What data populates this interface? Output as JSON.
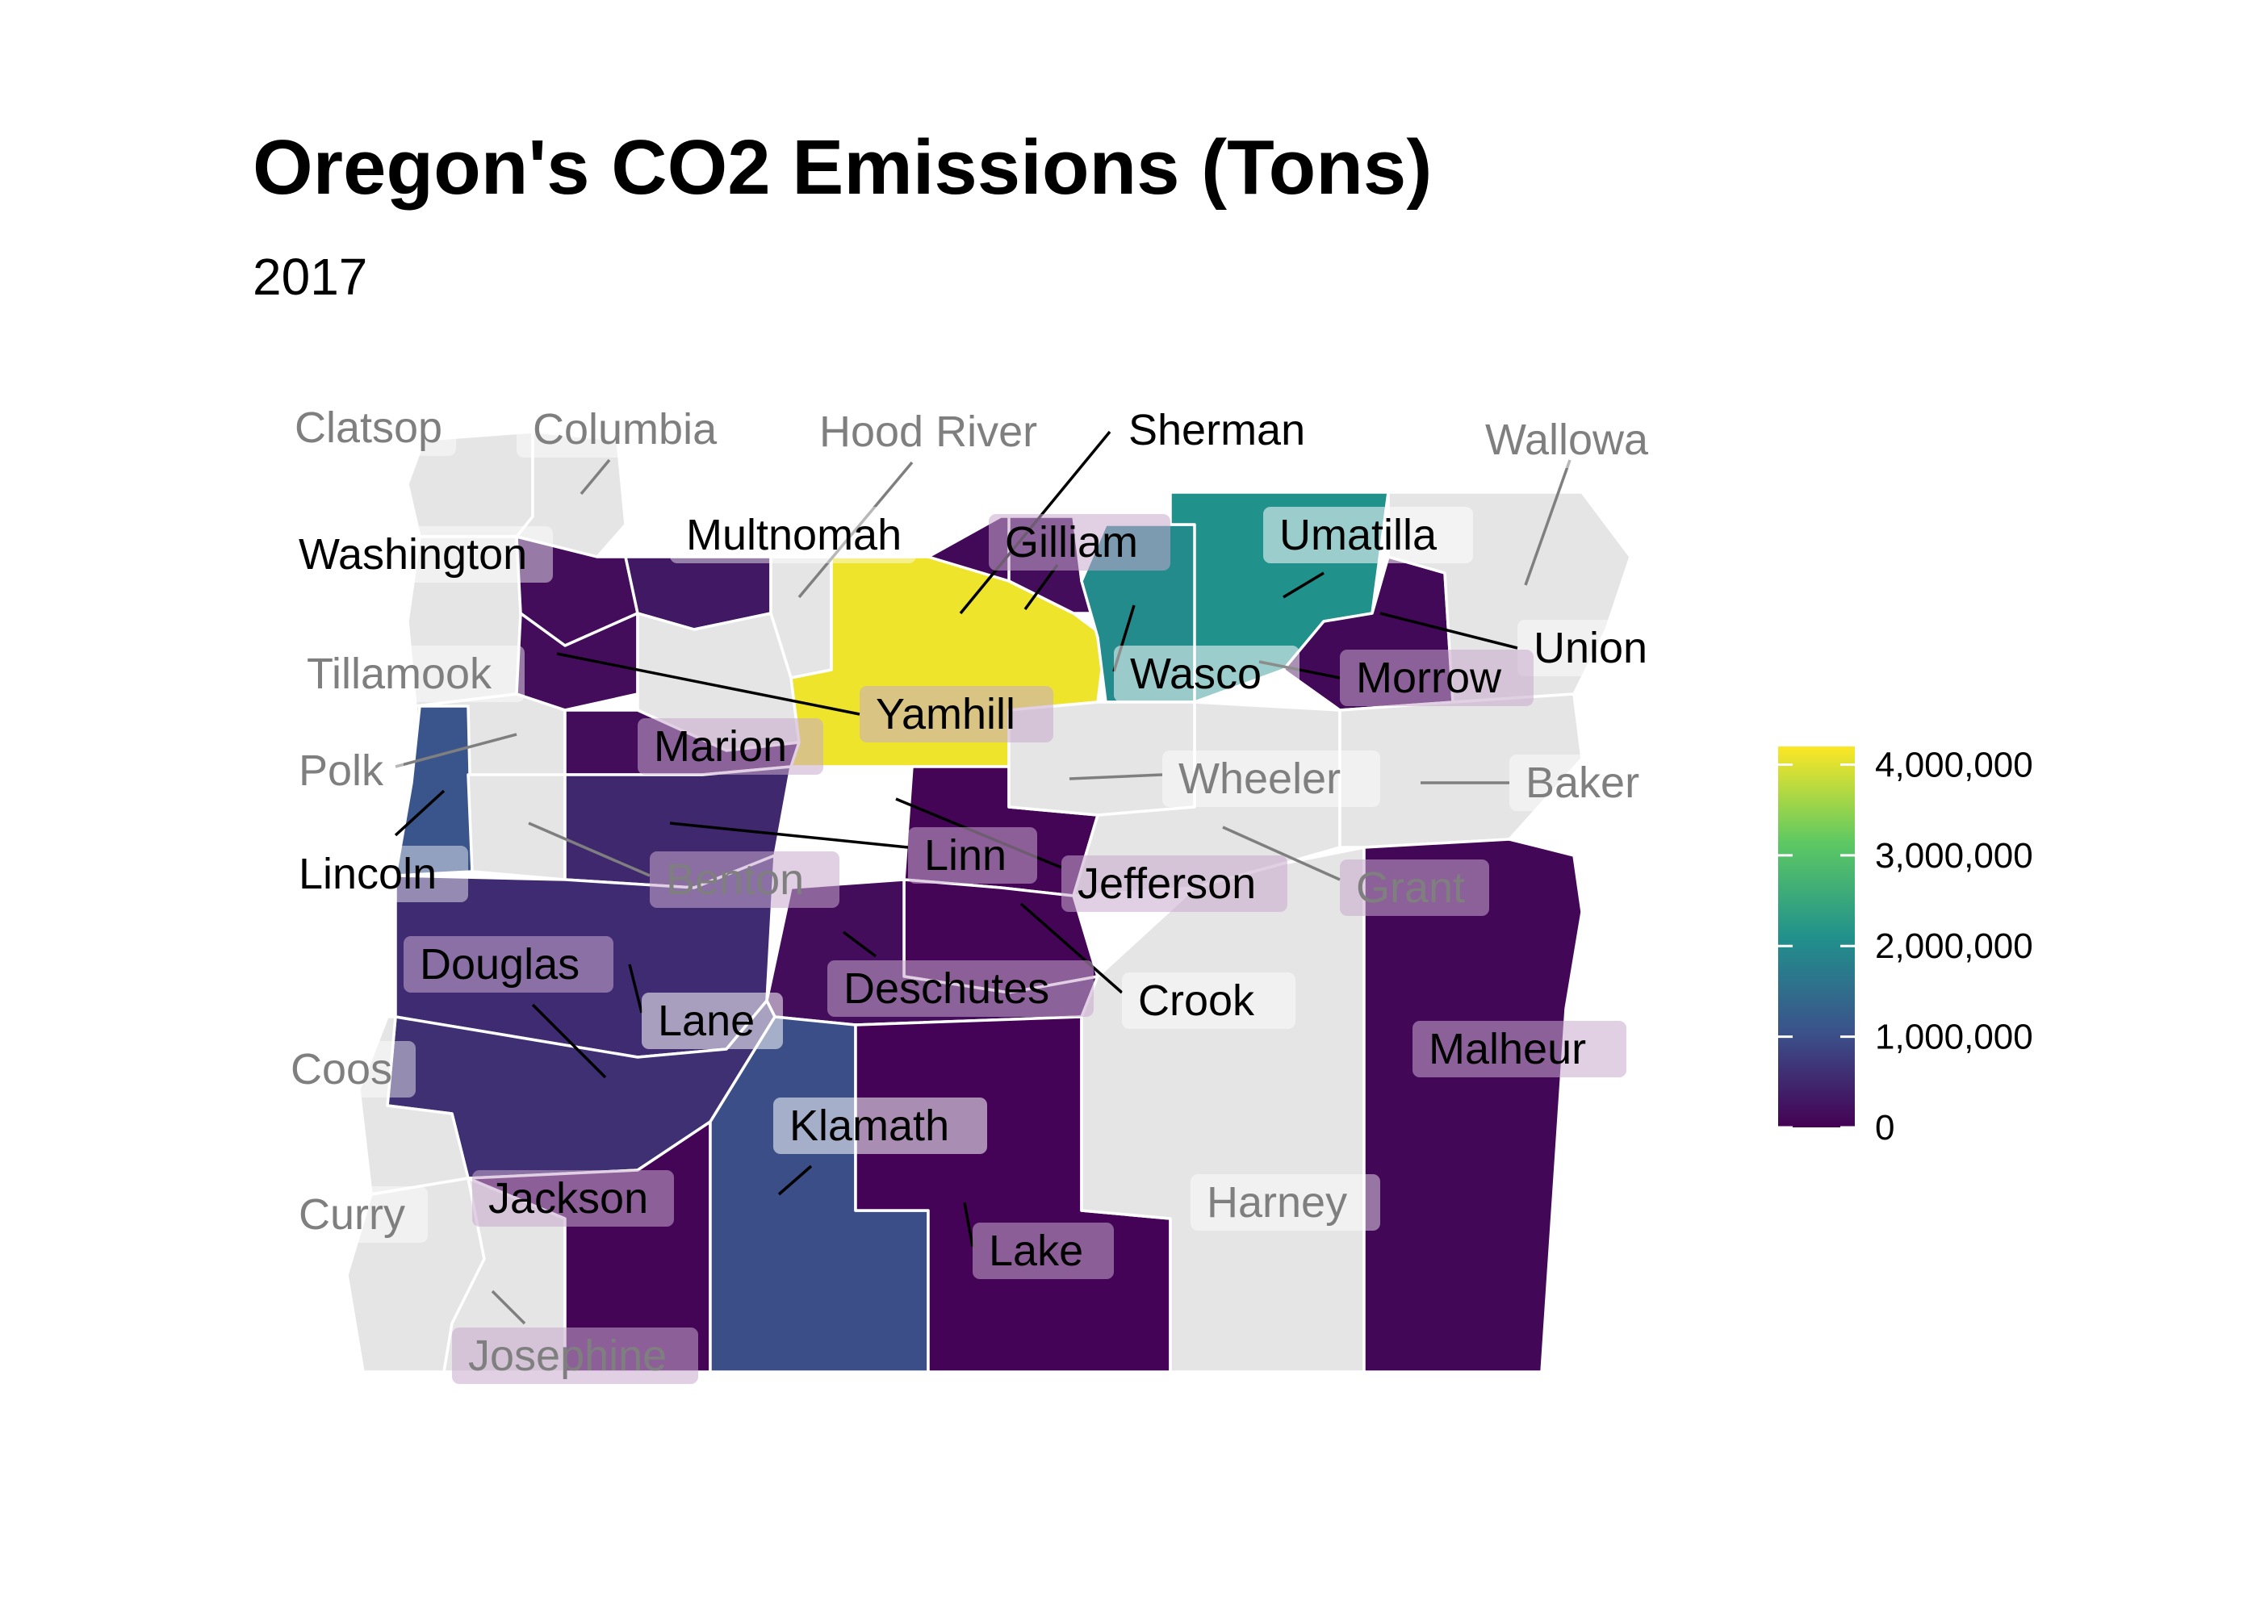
{
  "title": "Oregon's CO2 Emissions (Tons)",
  "subtitle": "2017",
  "chart_data": {
    "type": "choropleth",
    "legend": {
      "placement": "right",
      "ticks": [
        "4,000,000",
        "3,000,000",
        "2,000,000",
        "1,000,000",
        "0"
      ],
      "tick_values": [
        4000000,
        3000000,
        2000000,
        1000000,
        0
      ],
      "range": [
        0,
        4200000
      ],
      "colors": [
        "#440154",
        "#3b528b",
        "#21918c",
        "#5ec962",
        "#fde725"
      ]
    },
    "no_data_color": "#e5e5e5",
    "counties": [
      {
        "name": "Clatsop",
        "value": null
      },
      {
        "name": "Columbia",
        "value": null
      },
      {
        "name": "Hood River",
        "value": null
      },
      {
        "name": "Sherman",
        "value": 100000
      },
      {
        "name": "Wallowa",
        "value": null
      },
      {
        "name": "Washington",
        "value": 150000
      },
      {
        "name": "Multnomah",
        "value": 300000
      },
      {
        "name": "Gilliam",
        "value": 150000
      },
      {
        "name": "Umatilla",
        "value": 2100000
      },
      {
        "name": "Union",
        "value": 100000
      },
      {
        "name": "Tillamook",
        "value": null
      },
      {
        "name": "Wasco",
        "value": 4100000
      },
      {
        "name": "Morrow",
        "value": 2000000
      },
      {
        "name": "Yamhill",
        "value": 150000
      },
      {
        "name": "Polk",
        "value": null
      },
      {
        "name": "Marion",
        "value": 150000
      },
      {
        "name": "Wheeler",
        "value": null
      },
      {
        "name": "Baker",
        "value": null
      },
      {
        "name": "Lincoln",
        "value": 1100000
      },
      {
        "name": "Benton",
        "value": null
      },
      {
        "name": "Linn",
        "value": 500000
      },
      {
        "name": "Jefferson",
        "value": 50000
      },
      {
        "name": "Grant",
        "value": null
      },
      {
        "name": "Douglas",
        "value": 600000
      },
      {
        "name": "Deschutes",
        "value": 150000
      },
      {
        "name": "Crook",
        "value": 50000
      },
      {
        "name": "Lane",
        "value": 550000
      },
      {
        "name": "Malheur",
        "value": 80000
      },
      {
        "name": "Coos",
        "value": null
      },
      {
        "name": "Klamath",
        "value": 1000000
      },
      {
        "name": "Harney",
        "value": null
      },
      {
        "name": "Curry",
        "value": null
      },
      {
        "name": "Jackson",
        "value": 50000
      },
      {
        "name": "Lake",
        "value": 30000
      },
      {
        "name": "Josephine",
        "value": null
      }
    ]
  }
}
